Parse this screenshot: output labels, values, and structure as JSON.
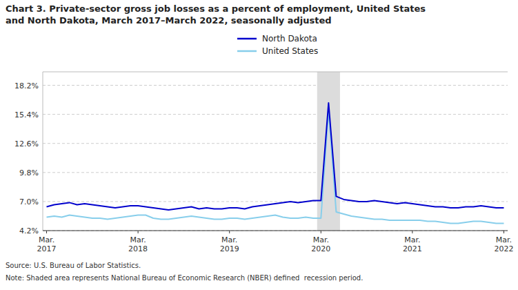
{
  "chart_data": {
    "type": "line",
    "title": "Chart 3. Private-sector gross job losses as a percent of employment, United States",
    "subtitle": "and North Dakota, March 2017–March 2022, seasonally adjusted",
    "source": "Source: U.S. Bureau of Labor Statistics.",
    "note": "Note: Shaded area represents National Bureau of Economic Research (NBER) defined  recession period.",
    "categories": [
      "Mar.\n2017",
      null,
      null,
      null,
      null,
      null,
      null,
      null,
      null,
      null,
      null,
      null,
      "Mar.\n2018",
      null,
      null,
      null,
      null,
      null,
      null,
      null,
      null,
      null,
      null,
      null,
      "Mar.\n2019",
      null,
      null,
      null,
      null,
      null,
      null,
      null,
      null,
      null,
      null,
      null,
      "Mar.\n2020",
      null,
      null,
      null,
      null,
      null,
      null,
      null,
      null,
      null,
      null,
      null,
      "Mar.\n2021",
      null,
      null,
      null,
      null,
      null,
      null,
      null,
      null,
      null,
      null,
      null,
      "Mar.\n2022"
    ],
    "series": [
      {
        "name": "North Dakota",
        "color": "#0000CD",
        "values": [
          6.5,
          6.7,
          6.8,
          6.9,
          6.7,
          6.8,
          6.7,
          6.6,
          6.5,
          6.4,
          6.5,
          6.6,
          6.6,
          6.5,
          6.4,
          6.3,
          6.2,
          6.3,
          6.4,
          6.5,
          6.3,
          6.4,
          6.3,
          6.3,
          6.4,
          6.4,
          6.3,
          6.5,
          6.6,
          6.7,
          6.8,
          6.9,
          7.0,
          6.9,
          7.0,
          7.1,
          7.1,
          16.5,
          7.5,
          7.2,
          7.1,
          7.0,
          7.0,
          7.1,
          7.0,
          6.9,
          6.8,
          6.9,
          6.8,
          6.7,
          6.6,
          6.5,
          6.5,
          6.4,
          6.4,
          6.5,
          6.5,
          6.6,
          6.5,
          6.4,
          6.4
        ]
      },
      {
        "name": "United States",
        "color": "#87CEEB",
        "values": [
          5.5,
          5.6,
          5.5,
          5.7,
          5.6,
          5.5,
          5.4,
          5.4,
          5.3,
          5.4,
          5.5,
          5.6,
          5.7,
          5.7,
          5.4,
          5.3,
          5.3,
          5.4,
          5.5,
          5.6,
          5.5,
          5.4,
          5.3,
          5.3,
          5.4,
          5.4,
          5.3,
          5.4,
          5.5,
          5.6,
          5.7,
          5.5,
          5.4,
          5.4,
          5.5,
          5.4,
          5.4,
          15.8,
          6.0,
          5.8,
          5.6,
          5.5,
          5.4,
          5.3,
          5.3,
          5.2,
          5.2,
          5.2,
          5.2,
          5.2,
          5.1,
          5.1,
          5.0,
          4.9,
          4.9,
          5.0,
          5.1,
          5.1,
          5.0,
          4.9,
          4.9
        ]
      }
    ],
    "recession": {
      "start": 35.5,
      "end": 38.5,
      "color": "#DCDCDC"
    },
    "ylim": [
      4.2,
      19.5
    ],
    "yticks": [
      {
        "value": 4.2,
        "label": "4.2%"
      },
      {
        "value": 7.0,
        "label": "7.0%"
      },
      {
        "value": 9.8,
        "label": "9.8%"
      },
      {
        "value": 12.6,
        "label": "12.6%"
      },
      {
        "value": 15.4,
        "label": "15.4%"
      },
      {
        "value": 18.2,
        "label": "18.2%"
      }
    ],
    "grid": true,
    "legend": "top"
  }
}
